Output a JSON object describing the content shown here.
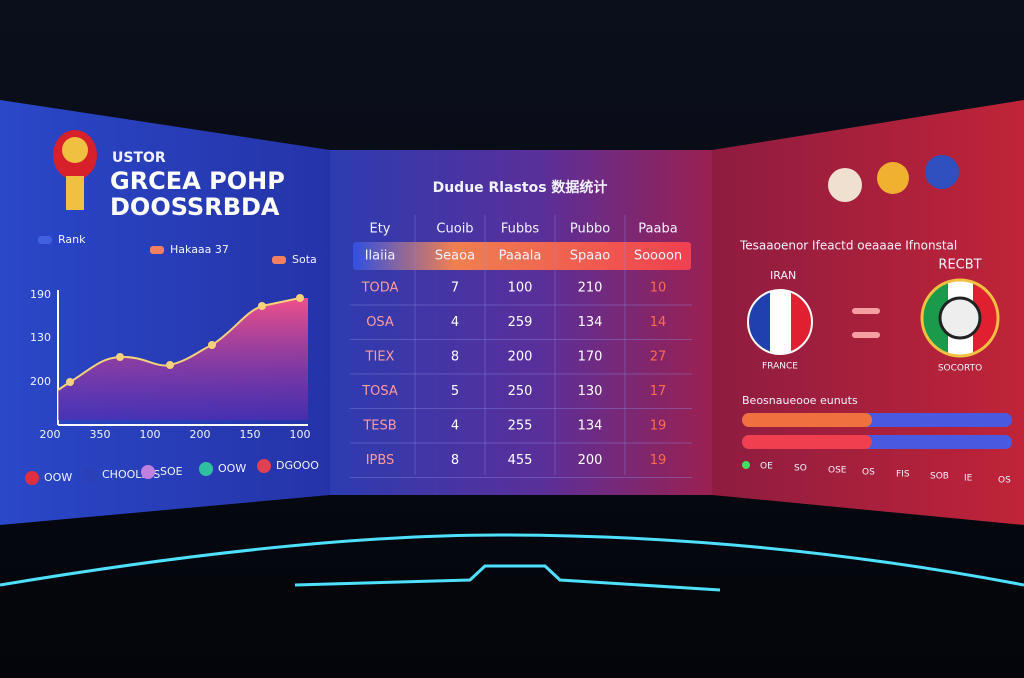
{
  "left_panel": {
    "title_lines": [
      "USTOR",
      "GRCEA POHP",
      "DOOSSRBDA"
    ],
    "legend": [
      "Rank",
      "Hakaaa 37",
      "Sota"
    ],
    "y_labels": [
      "190",
      "130",
      "200"
    ],
    "x_labels": [
      "200",
      "350",
      "100",
      "200",
      "150",
      "100"
    ],
    "bottom_legend": [
      "OOW",
      "CHOOLIOS",
      "SOE",
      "OOW",
      "DGOOO"
    ]
  },
  "center_panel": {
    "title": "Dudue Rlastos 数据统计",
    "table": {
      "header": [
        "Ety",
        "Cuoib",
        "Fubbs",
        "Pubbo",
        "Paaba"
      ],
      "highlight_row": [
        "Ilaiia",
        "Seaoa",
        "Paaala",
        "Spaao",
        "Soooon"
      ],
      "rows": [
        [
          "TODA",
          "7",
          "100",
          "210",
          "10"
        ],
        [
          "OSA",
          "4",
          "259",
          "134",
          "14"
        ],
        [
          "TIEX",
          "8",
          "200",
          "170",
          "27"
        ],
        [
          "TOSA",
          "5",
          "250",
          "130",
          "17"
        ],
        [
          "TESB",
          "4",
          "255",
          "134",
          "19"
        ],
        [
          "IPBS",
          "8",
          "455",
          "200",
          "19"
        ]
      ]
    }
  },
  "right_panel": {
    "heading": "Tesaaoenor Ifeactd oeaaae Ifnonstal",
    "left_team": "IRAN",
    "right_team": "RECBT",
    "left_flag_label": "FRANCE",
    "right_flag_label": "SOCORTO",
    "bars_label": "Beosnaueooe eunuts",
    "bottom_labels": [
      "OE",
      "SO",
      "OSE",
      "OS",
      "FIS",
      "SOB",
      "IE",
      "OS"
    ]
  }
}
